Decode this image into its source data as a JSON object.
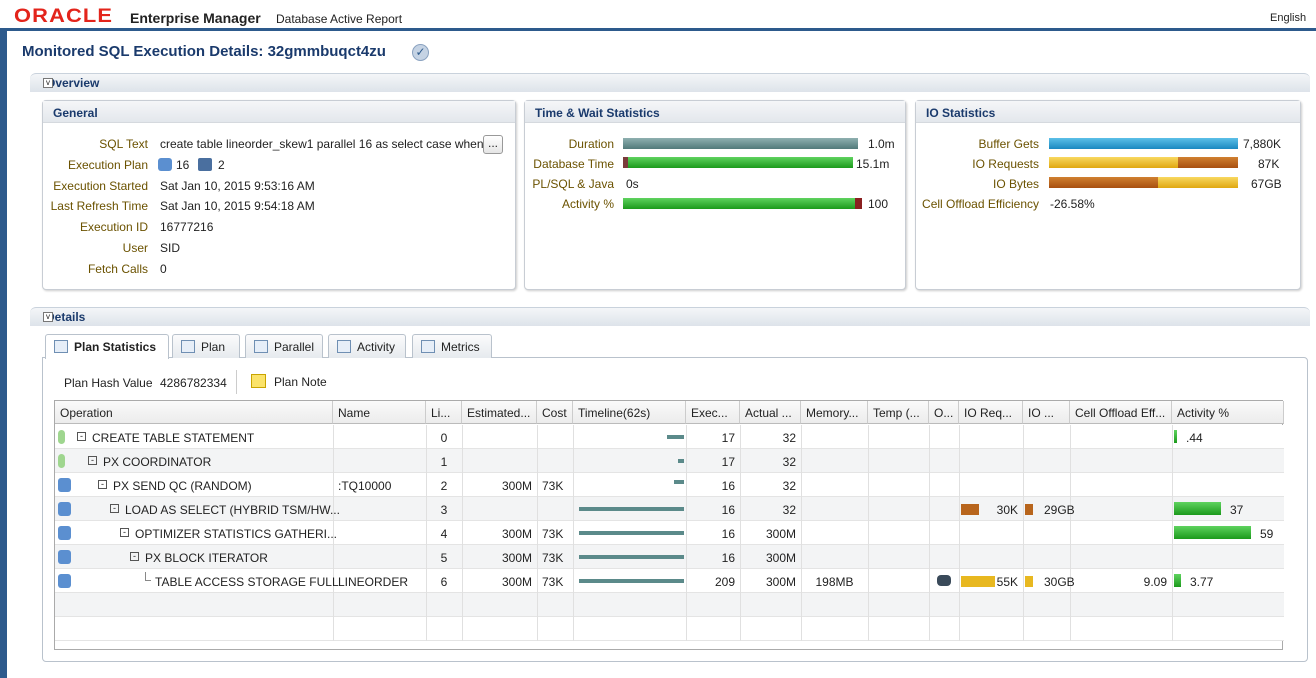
{
  "header": {
    "brand": "ORACLE",
    "product": "Enterprise Manager",
    "subtitle": "Database Active Report",
    "language": "English"
  },
  "title": "Monitored SQL Execution Details: 32gmmbuqct4zu",
  "overview": {
    "label": "Overview",
    "general": {
      "title": "General",
      "rows": [
        {
          "label": "SQL Text",
          "value": "create table lineorder_skew1 parallel 16 as select case when"
        },
        {
          "label": "Execution Plan",
          "values": [
            "16",
            "2"
          ]
        },
        {
          "label": "Execution Started",
          "value": "Sat Jan 10, 2015 9:53:16 AM"
        },
        {
          "label": "Last Refresh Time",
          "value": "Sat Jan 10, 2015 9:54:18 AM"
        },
        {
          "label": "Execution ID",
          "value": "16777216"
        },
        {
          "label": "User",
          "value": "SID"
        },
        {
          "label": "Fetch Calls",
          "value": "0"
        }
      ],
      "more": "..."
    },
    "time_wait": {
      "title": "Time & Wait Statistics",
      "rows": [
        {
          "label": "Duration",
          "value": "1.0m"
        },
        {
          "label": "Database Time",
          "value": "15.1m"
        },
        {
          "label": "PL/SQL & Java",
          "value": "0s"
        },
        {
          "label": "Activity %",
          "value": "100"
        }
      ]
    },
    "io": {
      "title": "IO Statistics",
      "rows": [
        {
          "label": "Buffer Gets",
          "value": "7,880K"
        },
        {
          "label": "IO Requests",
          "value": "87K"
        },
        {
          "label": "IO Bytes",
          "value": "67GB"
        },
        {
          "label": "Cell Offload Efficiency",
          "value": "-26.58%"
        }
      ]
    }
  },
  "details": {
    "label": "Details",
    "tabs": [
      "Plan Statistics",
      "Plan",
      "Parallel",
      "Activity",
      "Metrics"
    ],
    "plan_hash_label": "Plan Hash Value",
    "plan_hash": "4286782334",
    "plan_note": "Plan Note",
    "table": {
      "columns": [
        "Operation",
        "Name",
        "Li...",
        "Estimated...",
        "Cost",
        "Timeline(62s)",
        "Exec...",
        "Actual ...",
        "Memory...",
        "Temp (...",
        "O...",
        "IO Req...",
        "IO ...",
        "Cell Offload Eff...",
        "Activity %"
      ],
      "rows": [
        [
          "CREATE TABLE STATEMENT",
          null,
          "0",
          null,
          null,
          null,
          "17",
          "32",
          null,
          null,
          null,
          null,
          null,
          null,
          ".44"
        ],
        [
          "PX COORDINATOR",
          null,
          "1",
          null,
          null,
          null,
          "17",
          "32",
          null,
          null,
          null,
          null,
          null,
          null,
          null
        ],
        [
          "PX SEND QC (RANDOM)",
          ":TQ10000",
          "2",
          "300M",
          "73K",
          null,
          "16",
          "32",
          null,
          null,
          null,
          null,
          null,
          null,
          null
        ],
        [
          "LOAD AS SELECT (HYBRID TSM/HW...",
          null,
          "3",
          null,
          null,
          null,
          "16",
          "32",
          null,
          null,
          null,
          "30K",
          "29GB",
          null,
          "37"
        ],
        [
          "OPTIMIZER STATISTICS GATHERI...",
          null,
          "4",
          "300M",
          "73K",
          null,
          "16",
          "300M",
          null,
          null,
          null,
          null,
          null,
          null,
          "59"
        ],
        [
          "PX BLOCK ITERATOR",
          null,
          "5",
          "300M",
          "73K",
          null,
          "16",
          "300M",
          null,
          null,
          null,
          null,
          null,
          null,
          null
        ],
        [
          "TABLE ACCESS STORAGE FULL",
          "LINEORDER",
          "6",
          "300M",
          "73K",
          null,
          "209",
          "300M",
          "198MB",
          null,
          null,
          "55K",
          "30GB",
          "9.09",
          "3.77"
        ]
      ]
    }
  }
}
